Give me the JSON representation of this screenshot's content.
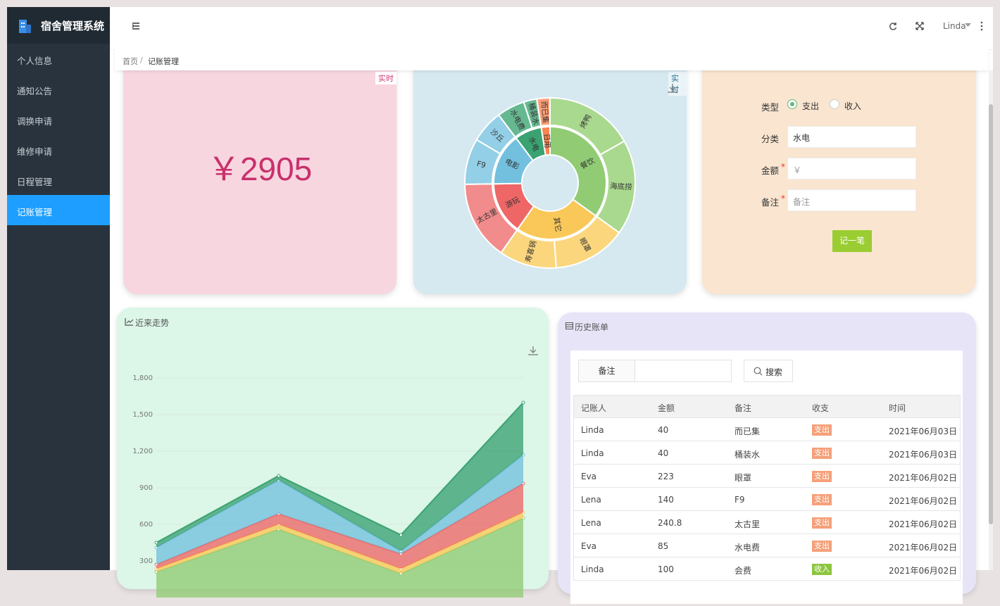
{
  "sidebar": {
    "title": "宿舍管理系统",
    "menu": [
      "个人信息",
      "通知公告",
      "调换申请",
      "维修申请",
      "日程管理",
      "记账管理"
    ],
    "active": 5
  },
  "header": {
    "user": "Linda"
  },
  "breadcrumb": {
    "items": [
      "首页",
      "记账管理"
    ],
    "separator": "/"
  },
  "total_card": {
    "badge": "实时",
    "amount": "￥2905"
  },
  "category_chart": {
    "type": "sunburst",
    "badge": "实时",
    "groups": [
      {
        "name": "餐饮",
        "color": "#91cc75",
        "outer_color": "#a9d98f",
        "children": [
          {
            "name": "烤鸭",
            "value": 270
          },
          {
            "name": "海底捞",
            "value": 290
          }
        ]
      },
      {
        "name": "其它",
        "color": "#f9c858",
        "outer_color": "#fbd67d",
        "children": [
          {
            "name": "眼罩",
            "value": 223
          },
          {
            "name": "寿喜锅",
            "value": 175
          }
        ]
      },
      {
        "name": "游玩",
        "color": "#ee6666",
        "outer_color": "#f28b8b",
        "children": [
          {
            "name": "太古里",
            "value": 240.8
          }
        ]
      },
      {
        "name": "电影",
        "color": "#73c0de",
        "outer_color": "#93cfe6",
        "children": [
          {
            "name": "F9",
            "value": 140
          },
          {
            "name": "沙丘",
            "value": 100
          }
        ]
      },
      {
        "name": "水电",
        "color": "#3ba272",
        "outer_color": "#66b891",
        "children": [
          {
            "name": "水电费",
            "value": 85
          },
          {
            "name": "桶装水",
            "value": 40
          }
        ]
      },
      {
        "name": "日用",
        "color": "#fc8452",
        "outer_color": "#fd9f78",
        "children": [
          {
            "name": "而已集",
            "value": 40
          }
        ]
      }
    ]
  },
  "form": {
    "required_mark": "*",
    "type": {
      "label": "类型",
      "options": [
        "支出",
        "收入"
      ],
      "checked": 0
    },
    "category": {
      "label": "分类",
      "value": "水电"
    },
    "amount": {
      "label": "金额",
      "placeholder": "￥"
    },
    "note": {
      "label": "备注",
      "placeholder": "备注"
    },
    "submit": "记一笔"
  },
  "trend_chart": {
    "type": "area",
    "title": "近来走势",
    "stacked": true,
    "grid": true,
    "ylim": [
      0,
      1800
    ],
    "yticks": [
      300,
      600,
      900,
      {
        "value": 1200,
        "label": "1,200"
      },
      {
        "value": 1500,
        "label": "1,500"
      },
      {
        "value": 1800,
        "label": "1,800"
      }
    ],
    "series": [
      {
        "color": "#91cc75",
        "values": [
          210,
          560,
          196,
          652
        ]
      },
      {
        "color": "#fac858",
        "values": [
          26,
          40,
          40,
          46
        ]
      },
      {
        "color": "#ee6666",
        "values": [
          35,
          87,
          122,
          237
        ]
      },
      {
        "color": "#73c0de",
        "values": [
          139,
          276,
          23,
          236
        ]
      },
      {
        "color": "#3ba272",
        "values": [
          40,
          35,
          132,
          427
        ]
      }
    ]
  },
  "history": {
    "title": "历史账单",
    "search": {
      "label": "备注",
      "button": "搜索"
    },
    "columns": [
      "记账人",
      "金额",
      "备注",
      "收支",
      "时间"
    ],
    "tag_colors": {
      "支出": "#f5a07a",
      "收入": "#8cc63f"
    },
    "rows": [
      [
        "Linda",
        40,
        "而已集",
        "支出",
        "2021年06月03日"
      ],
      [
        "Linda",
        40,
        "桶装水",
        "支出",
        "2021年06月03日"
      ],
      [
        "Eva",
        223,
        "眼罩",
        "支出",
        "2021年06月02日"
      ],
      [
        "Lena",
        140,
        "F9",
        "支出",
        "2021年06月02日"
      ],
      [
        "Lena",
        240.8,
        "太古里",
        "支出",
        "2021年06月02日"
      ],
      [
        "Eva",
        85,
        "水电费",
        "支出",
        "2021年06月02日"
      ],
      [
        "Linda",
        100,
        "会费",
        "收入",
        "2021年06月02日"
      ]
    ]
  }
}
